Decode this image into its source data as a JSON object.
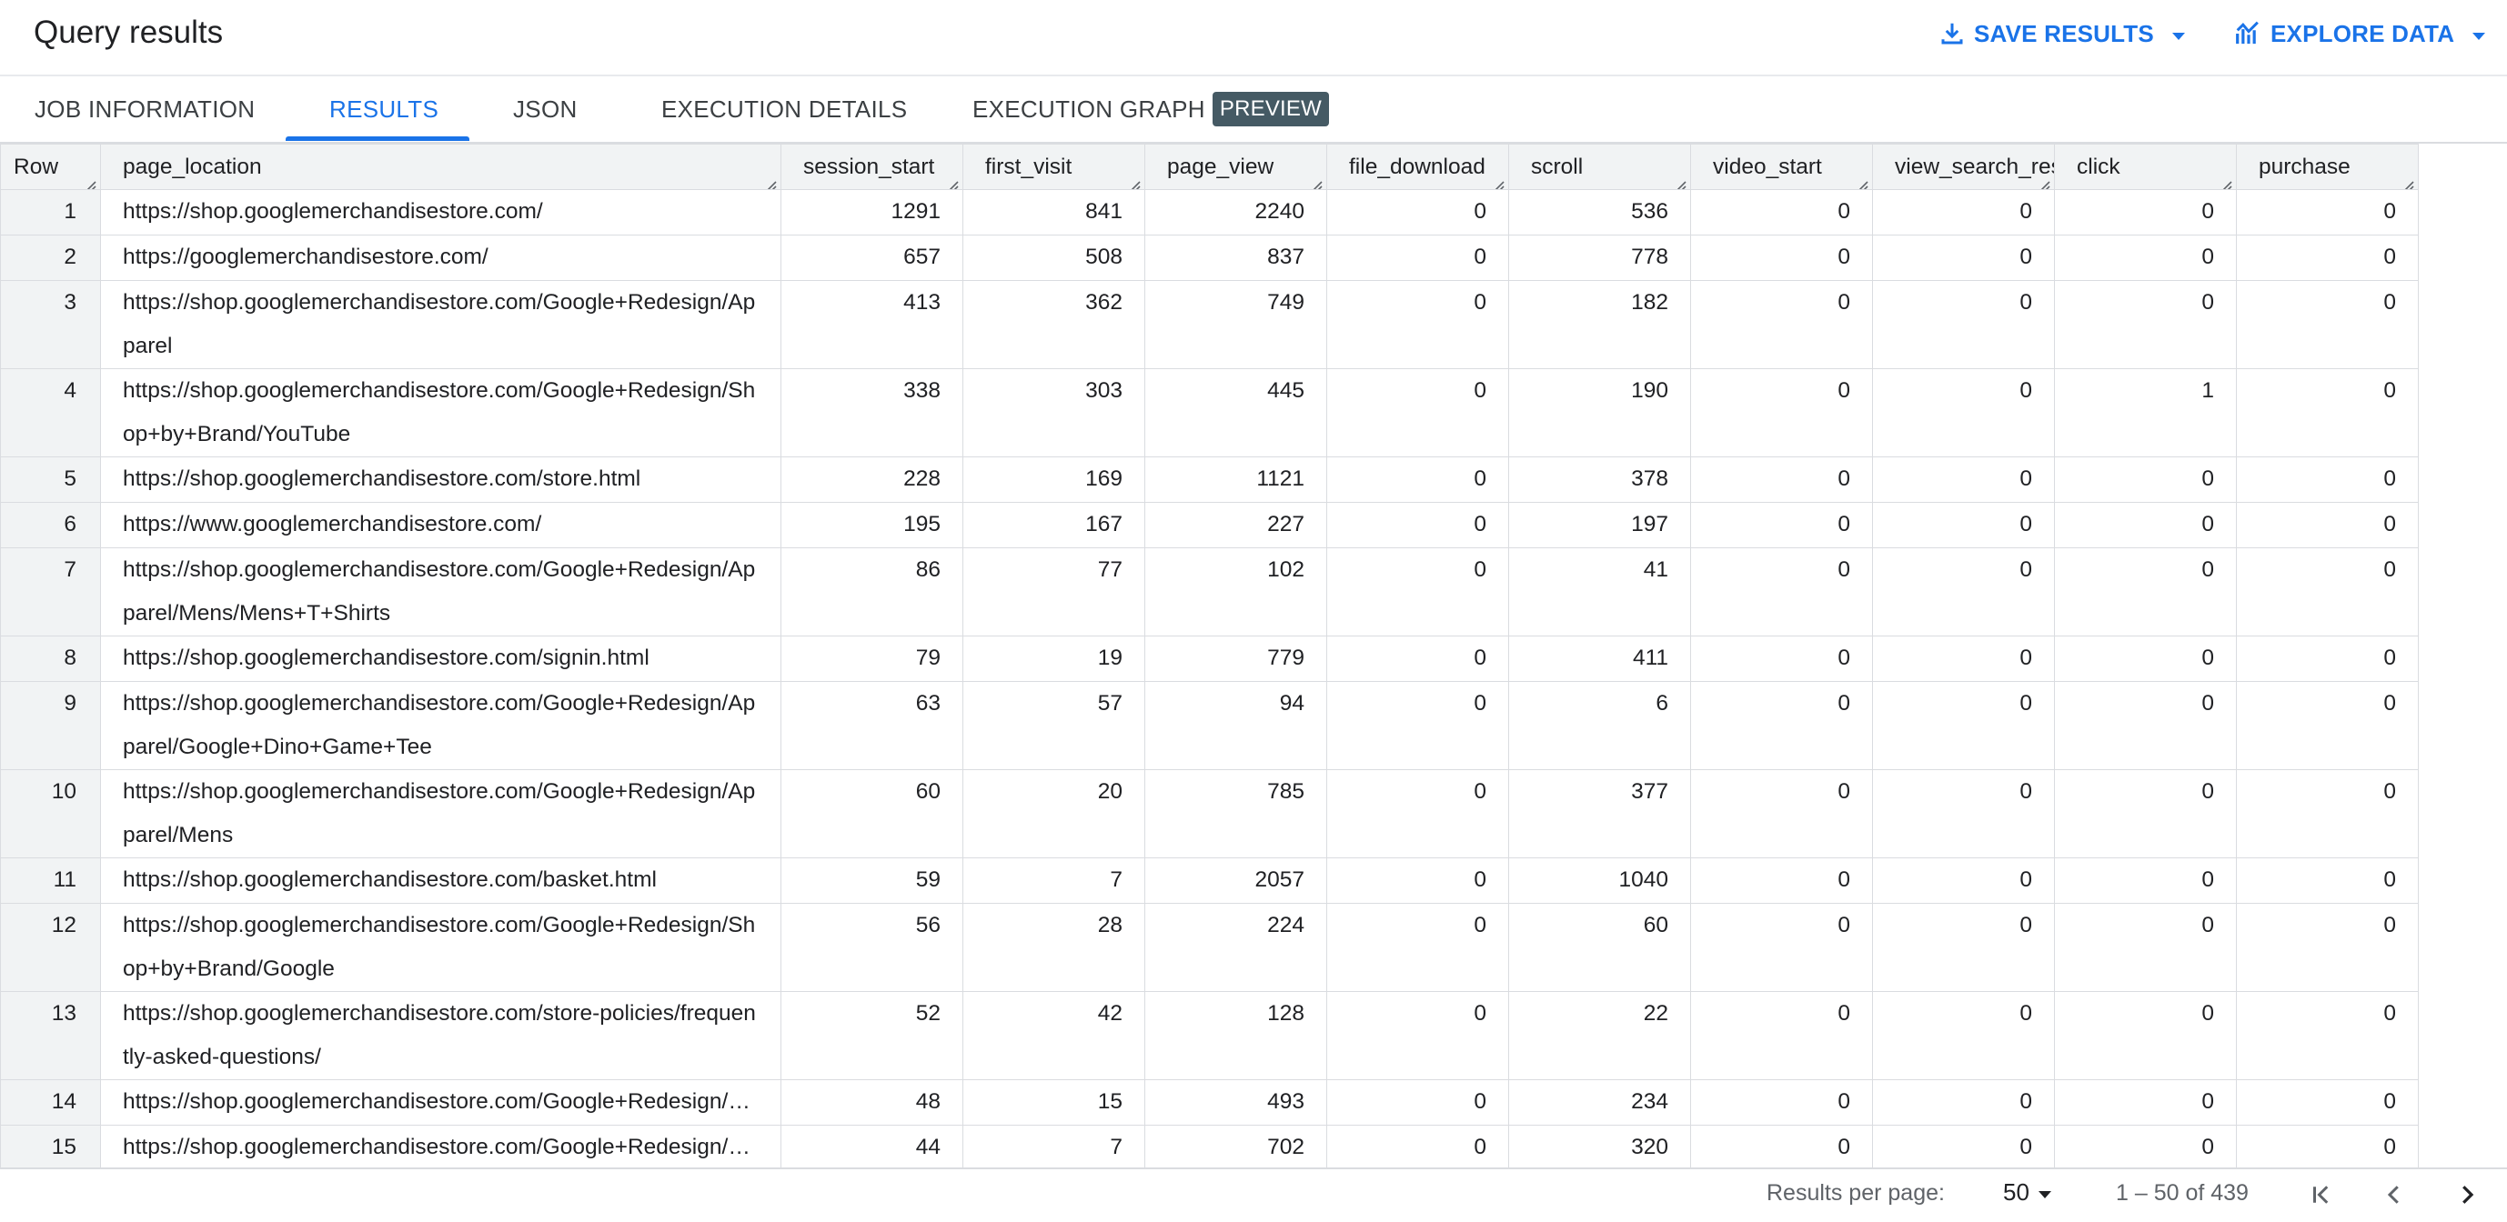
{
  "header": {
    "title": "Query results",
    "save_results_label": "SAVE RESULTS",
    "explore_data_label": "EXPLORE DATA"
  },
  "tabs": [
    {
      "label": "JOB INFORMATION",
      "active": false
    },
    {
      "label": "RESULTS",
      "active": true
    },
    {
      "label": "JSON",
      "active": false
    },
    {
      "label": "EXECUTION DETAILS",
      "active": false
    },
    {
      "label": "EXECUTION GRAPH",
      "active": false
    }
  ],
  "preview_chip": "PREVIEW",
  "columns": [
    "Row",
    "page_location",
    "session_start",
    "first_visit",
    "page_view",
    "file_download",
    "scroll",
    "video_start",
    "view_search_res",
    "click",
    "purchase"
  ],
  "rows": [
    [
      "1",
      "https://shop.googlemerchandisestore.com/",
      "1291",
      "841",
      "2240",
      "0",
      "536",
      "0",
      "0",
      "0",
      "0"
    ],
    [
      "2",
      "https://googlemerchandisestore.com/",
      "657",
      "508",
      "837",
      "0",
      "778",
      "0",
      "0",
      "0",
      "0"
    ],
    [
      "3",
      "https://shop.googlemerchandisestore.com/Google+Redesign/Apparel",
      "413",
      "362",
      "749",
      "0",
      "182",
      "0",
      "0",
      "0",
      "0"
    ],
    [
      "4",
      "https://shop.googlemerchandisestore.com/Google+Redesign/Shop+by+Brand/YouTube",
      "338",
      "303",
      "445",
      "0",
      "190",
      "0",
      "0",
      "1",
      "0"
    ],
    [
      "5",
      "https://shop.googlemerchandisestore.com/store.html",
      "228",
      "169",
      "1121",
      "0",
      "378",
      "0",
      "0",
      "0",
      "0"
    ],
    [
      "6",
      "https://www.googlemerchandisestore.com/",
      "195",
      "167",
      "227",
      "0",
      "197",
      "0",
      "0",
      "0",
      "0"
    ],
    [
      "7",
      "https://shop.googlemerchandisestore.com/Google+Redesign/Apparel/Mens/Mens+T+Shirts",
      "86",
      "77",
      "102",
      "0",
      "41",
      "0",
      "0",
      "0",
      "0"
    ],
    [
      "8",
      "https://shop.googlemerchandisestore.com/signin.html",
      "79",
      "19",
      "779",
      "0",
      "411",
      "0",
      "0",
      "0",
      "0"
    ],
    [
      "9",
      "https://shop.googlemerchandisestore.com/Google+Redesign/Apparel/Google+Dino+Game+Tee",
      "63",
      "57",
      "94",
      "0",
      "6",
      "0",
      "0",
      "0",
      "0"
    ],
    [
      "10",
      "https://shop.googlemerchandisestore.com/Google+Redesign/Apparel/Mens",
      "60",
      "20",
      "785",
      "0",
      "377",
      "0",
      "0",
      "0",
      "0"
    ],
    [
      "11",
      "https://shop.googlemerchandisestore.com/basket.html",
      "59",
      "7",
      "2057",
      "0",
      "1040",
      "0",
      "0",
      "0",
      "0"
    ],
    [
      "12",
      "https://shop.googlemerchandisestore.com/Google+Redesign/Shop+by+Brand/Google",
      "56",
      "28",
      "224",
      "0",
      "60",
      "0",
      "0",
      "0",
      "0"
    ],
    [
      "13",
      "https://shop.googlemerchandisestore.com/store-policies/frequently-asked-questions/",
      "52",
      "42",
      "128",
      "0",
      "22",
      "0",
      "0",
      "0",
      "0"
    ],
    [
      "14",
      "https://shop.googlemerchandisestore.com/Google+Redesign/N…",
      "48",
      "15",
      "493",
      "0",
      "234",
      "0",
      "0",
      "0",
      "0"
    ],
    [
      "15",
      "https://shop.googlemerchandisestore.com/Google+Redesign/Cle",
      "44",
      "7",
      "702",
      "0",
      "320",
      "0",
      "0",
      "0",
      "0"
    ]
  ],
  "footer": {
    "results_per_page_label": "Results per page:",
    "results_per_page_value": "50",
    "range_text": "1 – 50 of 439"
  },
  "icons": {
    "save": "download-icon",
    "explore": "chart-icon",
    "first_page": "first-page-icon",
    "prev_page": "chevron-left-icon",
    "next_page": "chevron-right-icon"
  },
  "colors": {
    "accent": "#1a73e8",
    "header_bg": "#f1f3f4",
    "border": "#dadce0",
    "chip_bg": "#455a64"
  }
}
